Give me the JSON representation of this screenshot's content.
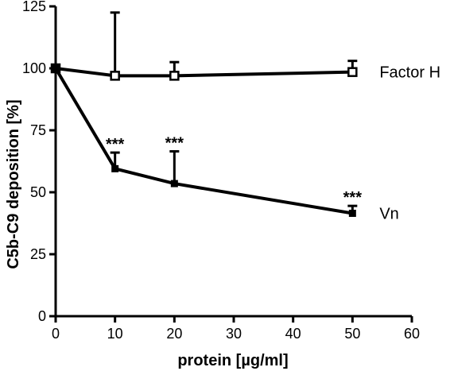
{
  "chart_data": {
    "type": "line",
    "title": "",
    "xlabel": "protein [µg/ml]",
    "ylabel": "C5b-C9 deposition [%]",
    "xlim": [
      0,
      60
    ],
    "ylim": [
      0,
      125
    ],
    "xticks": [
      0,
      10,
      20,
      30,
      40,
      50,
      60
    ],
    "yticks": [
      0,
      25,
      50,
      75,
      100,
      125
    ],
    "xtick_labels": [
      "0",
      "10",
      "20",
      "30",
      "40",
      "50",
      "60"
    ],
    "ytick_labels": [
      "0",
      "25",
      "50",
      "75",
      "100",
      "125"
    ],
    "grid": false,
    "legend": "none",
    "series": [
      {
        "name": "Factor H",
        "marker": "open-square",
        "x": [
          0,
          10,
          20,
          50
        ],
        "y": [
          100,
          97,
          97,
          98.5
        ],
        "err_upper": [
          0,
          25.5,
          5.5,
          4.5
        ]
      },
      {
        "name": "Vn",
        "marker": "filled-square",
        "x": [
          0,
          10,
          20,
          50
        ],
        "y": [
          100,
          59.5,
          53.5,
          41.5
        ],
        "err_upper": [
          0,
          6.5,
          13,
          3
        ]
      }
    ],
    "annotations": [
      {
        "text": "***",
        "x": 10,
        "y": 66
      },
      {
        "text": "***",
        "x": 20,
        "y": 66.5
      },
      {
        "text": "***",
        "x": 50,
        "y": 44.5
      }
    ]
  }
}
